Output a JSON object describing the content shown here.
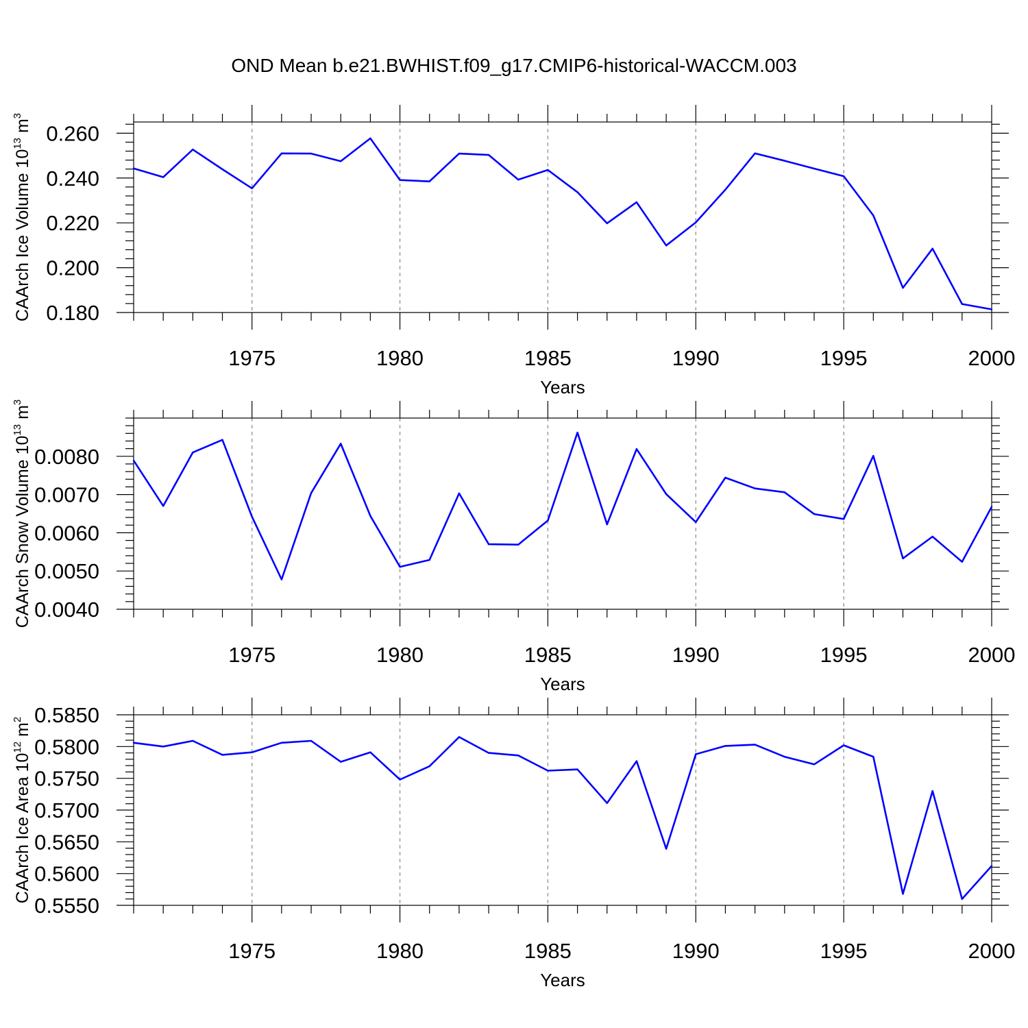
{
  "title": "OND Mean b.e21.BWHIST.f09_g17.CMIP6-historical-WACCM.003",
  "chart_data": [
    {
      "type": "line",
      "xlabel": "Years",
      "ylabel": {
        "main": "CAArch Ice Volume 10",
        "exp": "13",
        "unit": " m",
        "unit_exp": "3"
      },
      "xlim": [
        1971,
        2000
      ],
      "ylim": [
        0.18,
        0.265
      ],
      "xticks": [
        1975,
        1980,
        1985,
        1990,
        1995,
        2000
      ],
      "xtick_labels": [
        "1975",
        "1980",
        "1985",
        "1990",
        "1995",
        "2000"
      ],
      "yticks": [
        0.18,
        0.2,
        0.22,
        0.24,
        0.26
      ],
      "ytick_labels": [
        "0.180",
        "0.200",
        "0.220",
        "0.240",
        "0.260"
      ],
      "grid": "vertical dashed at major x ticks",
      "color": "#0000ff",
      "x": [
        1971,
        1972,
        1973,
        1974,
        1975,
        1976,
        1977,
        1978,
        1979,
        1980,
        1981,
        1982,
        1983,
        1984,
        1985,
        1986,
        1987,
        1988,
        1989,
        1990,
        1991,
        1992,
        1993,
        1994,
        1995,
        1996,
        1997,
        1998,
        1999,
        2000
      ],
      "values": [
        0.2443,
        0.2404,
        0.2527,
        0.2439,
        0.2354,
        0.251,
        0.2509,
        0.2475,
        0.2577,
        0.2391,
        0.2385,
        0.2509,
        0.2503,
        0.2393,
        0.2436,
        0.2337,
        0.2198,
        0.2292,
        0.2099,
        0.2202,
        0.2348,
        0.251,
        0.2477,
        0.2442,
        0.2408,
        0.2233,
        0.191,
        0.2085,
        0.1838,
        0.1814
      ]
    },
    {
      "type": "line",
      "xlabel": "Years",
      "ylabel": {
        "main": "CAArch Snow Volume 10",
        "exp": "13",
        "unit": " m",
        "unit_exp": "3"
      },
      "xlim": [
        1971,
        2000
      ],
      "ylim": [
        0.004,
        0.009
      ],
      "xticks": [
        1975,
        1980,
        1985,
        1990,
        1995,
        2000
      ],
      "xtick_labels": [
        "1975",
        "1980",
        "1985",
        "1990",
        "1995",
        "2000"
      ],
      "yticks": [
        0.004,
        0.005,
        0.006,
        0.007,
        0.008
      ],
      "ytick_labels": [
        "0.0040",
        "0.0050",
        "0.0060",
        "0.0070",
        "0.0080"
      ],
      "grid": "vertical dashed at major x ticks",
      "color": "#0000ff",
      "x": [
        1971,
        1972,
        1973,
        1974,
        1975,
        1976,
        1977,
        1978,
        1979,
        1980,
        1981,
        1982,
        1983,
        1984,
        1985,
        1986,
        1987,
        1988,
        1989,
        1990,
        1991,
        1992,
        1993,
        1994,
        1995,
        1996,
        1997,
        1998,
        1999,
        2000
      ],
      "values": [
        0.00789,
        0.0067,
        0.0081,
        0.00843,
        0.00642,
        0.00478,
        0.00704,
        0.00833,
        0.00644,
        0.00511,
        0.00529,
        0.00703,
        0.0057,
        0.00569,
        0.00632,
        0.00862,
        0.00622,
        0.00819,
        0.00701,
        0.00628,
        0.00744,
        0.00716,
        0.00706,
        0.00649,
        0.00636,
        0.00801,
        0.00533,
        0.0059,
        0.00524,
        0.00668
      ]
    },
    {
      "type": "line",
      "xlabel": "Years",
      "ylabel": {
        "main": "CAArch Ice Area 10",
        "exp": "12",
        "unit": " m",
        "unit_exp": "2"
      },
      "xlim": [
        1971,
        2000
      ],
      "ylim": [
        0.555,
        0.585
      ],
      "xticks": [
        1975,
        1980,
        1985,
        1990,
        1995,
        2000
      ],
      "xtick_labels": [
        "1975",
        "1980",
        "1985",
        "1990",
        "1995",
        "2000"
      ],
      "yticks": [
        0.555,
        0.56,
        0.565,
        0.57,
        0.575,
        0.58,
        0.585
      ],
      "ytick_labels": [
        "0.5550",
        "0.5600",
        "0.5650",
        "0.5700",
        "0.5750",
        "0.5800",
        "0.5850"
      ],
      "grid": "vertical dashed at major x ticks",
      "color": "#0000ff",
      "x": [
        1971,
        1972,
        1973,
        1974,
        1975,
        1976,
        1977,
        1978,
        1979,
        1980,
        1981,
        1982,
        1983,
        1984,
        1985,
        1986,
        1987,
        1988,
        1989,
        1990,
        1991,
        1992,
        1993,
        1994,
        1995,
        1996,
        1997,
        1998,
        1999,
        2000
      ],
      "values": [
        0.5806,
        0.58,
        0.5809,
        0.5787,
        0.5791,
        0.5806,
        0.5809,
        0.5776,
        0.5791,
        0.5748,
        0.5769,
        0.5815,
        0.579,
        0.5786,
        0.5762,
        0.5764,
        0.5711,
        0.5777,
        0.5639,
        0.5788,
        0.5801,
        0.5803,
        0.5784,
        0.5772,
        0.5802,
        0.5784,
        0.5568,
        0.573,
        0.556,
        0.5612
      ]
    }
  ]
}
